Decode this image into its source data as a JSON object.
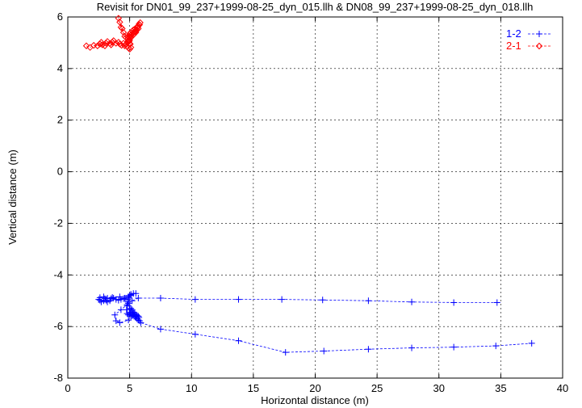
{
  "chart_data": {
    "type": "scatter",
    "title": "Revisit for DN01_99_237+1999-08-25_dyn_015.llh & DN08_99_237+1999-08-25_dyn_018.llh",
    "xlabel": "Horizontal distance (m)",
    "ylabel": "Vertical distance (m)",
    "xlim": [
      0,
      40
    ],
    "ylim": [
      -8,
      6
    ],
    "xticks": [
      "0",
      "5",
      "10",
      "15",
      "20",
      "25",
      "30",
      "35",
      "40"
    ],
    "yticks": [
      "-8",
      "-6",
      "-4",
      "-2",
      "0",
      "2",
      "4",
      "6"
    ],
    "grid": true,
    "legend_position": "top-right",
    "series": [
      {
        "name": "1-2",
        "color": "#0000ff",
        "marker": "plus",
        "line": "dashed",
        "points": [
          [
            37.5,
            -6.65
          ],
          [
            34.6,
            -6.75
          ],
          [
            31.2,
            -6.8
          ],
          [
            27.8,
            -6.83
          ],
          [
            24.3,
            -6.88
          ],
          [
            20.7,
            -6.95
          ],
          [
            17.6,
            -7.0
          ],
          [
            13.8,
            -6.55
          ],
          [
            10.3,
            -6.3
          ],
          [
            7.5,
            -6.1
          ],
          [
            5.9,
            -5.85
          ],
          [
            5.8,
            -5.78
          ],
          [
            5.7,
            -5.75
          ],
          [
            5.6,
            -5.7
          ],
          [
            5.5,
            -5.65
          ],
          [
            5.45,
            -5.62
          ],
          [
            5.35,
            -5.6
          ],
          [
            5.25,
            -5.55
          ],
          [
            5.2,
            -5.58
          ],
          [
            5.1,
            -5.55
          ],
          [
            5.0,
            -5.5
          ],
          [
            5.0,
            -5.35
          ],
          [
            5.1,
            -5.3
          ],
          [
            5.2,
            -5.35
          ],
          [
            5.3,
            -5.45
          ],
          [
            5.4,
            -5.5
          ],
          [
            5.55,
            -5.55
          ],
          [
            5.7,
            -5.6
          ],
          [
            5.75,
            -5.65
          ],
          [
            5.6,
            -5.58
          ],
          [
            5.45,
            -5.55
          ],
          [
            5.3,
            -5.5
          ],
          [
            5.2,
            -5.4
          ],
          [
            5.1,
            -5.45
          ],
          [
            5.0,
            -5.5
          ],
          [
            4.9,
            -5.55
          ],
          [
            4.8,
            -5.5
          ],
          [
            4.75,
            -5.35
          ],
          [
            4.8,
            -5.2
          ],
          [
            4.85,
            -5.05
          ],
          [
            4.9,
            -4.9
          ],
          [
            5.0,
            -4.8
          ],
          [
            5.1,
            -4.75
          ],
          [
            5.3,
            -4.72
          ],
          [
            5.5,
            -4.72
          ],
          [
            5.1,
            -4.78
          ],
          [
            4.9,
            -4.85
          ],
          [
            4.7,
            -4.9
          ],
          [
            4.5,
            -4.92
          ],
          [
            4.3,
            -4.95
          ],
          [
            4.1,
            -4.98
          ],
          [
            3.9,
            -4.95
          ],
          [
            3.7,
            -4.9
          ],
          [
            3.5,
            -4.92
          ],
          [
            3.4,
            -5.0
          ],
          [
            3.2,
            -5.05
          ],
          [
            3.1,
            -4.98
          ],
          [
            3.0,
            -4.92
          ],
          [
            2.9,
            -5.0
          ],
          [
            2.7,
            -5.05
          ],
          [
            2.6,
            -4.98
          ],
          [
            2.5,
            -4.95
          ],
          [
            2.6,
            -4.88
          ],
          [
            2.9,
            -4.85
          ],
          [
            3.2,
            -4.9
          ],
          [
            3.6,
            -4.87
          ],
          [
            4.2,
            -4.85
          ],
          [
            4.6,
            -4.9
          ],
          [
            4.85,
            -4.95
          ],
          [
            4.9,
            -5.1
          ],
          [
            5.0,
            -5.3
          ],
          [
            5.1,
            -5.6
          ],
          [
            4.9,
            -5.75
          ],
          [
            4.2,
            -5.85
          ],
          [
            3.9,
            -5.78
          ],
          [
            3.8,
            -5.55
          ],
          [
            4.3,
            -5.35
          ],
          [
            4.8,
            -5.15
          ],
          [
            5.2,
            -5.0
          ],
          [
            5.7,
            -4.9
          ],
          [
            7.5,
            -4.9
          ],
          [
            10.3,
            -4.95
          ],
          [
            13.8,
            -4.95
          ],
          [
            17.3,
            -4.95
          ],
          [
            20.6,
            -4.97
          ],
          [
            24.3,
            -5.0
          ],
          [
            27.8,
            -5.05
          ],
          [
            31.2,
            -5.07
          ],
          [
            34.7,
            -5.07
          ]
        ]
      },
      {
        "name": "2-1",
        "color": "#ff0000",
        "marker": "diamond",
        "line": "dashed",
        "points": [
          [
            1.5,
            4.88
          ],
          [
            1.8,
            4.82
          ],
          [
            2.1,
            4.9
          ],
          [
            2.4,
            4.88
          ],
          [
            2.6,
            4.95
          ],
          [
            2.7,
            5.02
          ],
          [
            2.8,
            4.92
          ],
          [
            3.0,
            4.88
          ],
          [
            3.1,
            4.98
          ],
          [
            3.2,
            5.05
          ],
          [
            3.4,
            4.97
          ],
          [
            3.5,
            4.92
          ],
          [
            3.6,
            5.02
          ],
          [
            3.7,
            5.08
          ],
          [
            3.9,
            4.98
          ],
          [
            4.1,
            5.02
          ],
          [
            4.2,
            4.95
          ],
          [
            4.35,
            4.9
          ],
          [
            4.5,
            4.98
          ],
          [
            4.6,
            4.88
          ],
          [
            4.7,
            4.95
          ],
          [
            4.8,
            4.85
          ],
          [
            4.9,
            4.8
          ],
          [
            5.0,
            4.75
          ],
          [
            5.1,
            4.82
          ],
          [
            5.05,
            4.95
          ],
          [
            4.95,
            5.05
          ],
          [
            4.85,
            5.15
          ],
          [
            4.9,
            5.25
          ],
          [
            5.0,
            5.35
          ],
          [
            5.1,
            5.4
          ],
          [
            5.2,
            5.45
          ],
          [
            5.3,
            5.5
          ],
          [
            5.45,
            5.55
          ],
          [
            5.6,
            5.6
          ],
          [
            5.7,
            5.65
          ],
          [
            5.75,
            5.72
          ],
          [
            5.85,
            5.78
          ],
          [
            5.8,
            5.7
          ],
          [
            5.65,
            5.6
          ],
          [
            5.5,
            5.48
          ],
          [
            5.35,
            5.42
          ],
          [
            5.2,
            5.35
          ],
          [
            5.05,
            5.28
          ],
          [
            4.95,
            5.2
          ],
          [
            5.0,
            5.1
          ],
          [
            5.15,
            5.25
          ],
          [
            5.3,
            5.38
          ],
          [
            5.45,
            5.42
          ],
          [
            5.6,
            5.5
          ],
          [
            5.7,
            5.55
          ],
          [
            5.5,
            5.4
          ],
          [
            5.3,
            5.3
          ],
          [
            5.1,
            5.2
          ],
          [
            4.9,
            5.1
          ],
          [
            4.7,
            5.2
          ],
          [
            4.5,
            5.4
          ],
          [
            4.4,
            5.55
          ],
          [
            4.2,
            5.8
          ],
          [
            4.1,
            5.95
          ],
          [
            4.3,
            5.6
          ],
          [
            4.6,
            5.25
          ],
          [
            4.85,
            5.05
          ],
          [
            5.0,
            4.95
          ]
        ]
      }
    ]
  }
}
